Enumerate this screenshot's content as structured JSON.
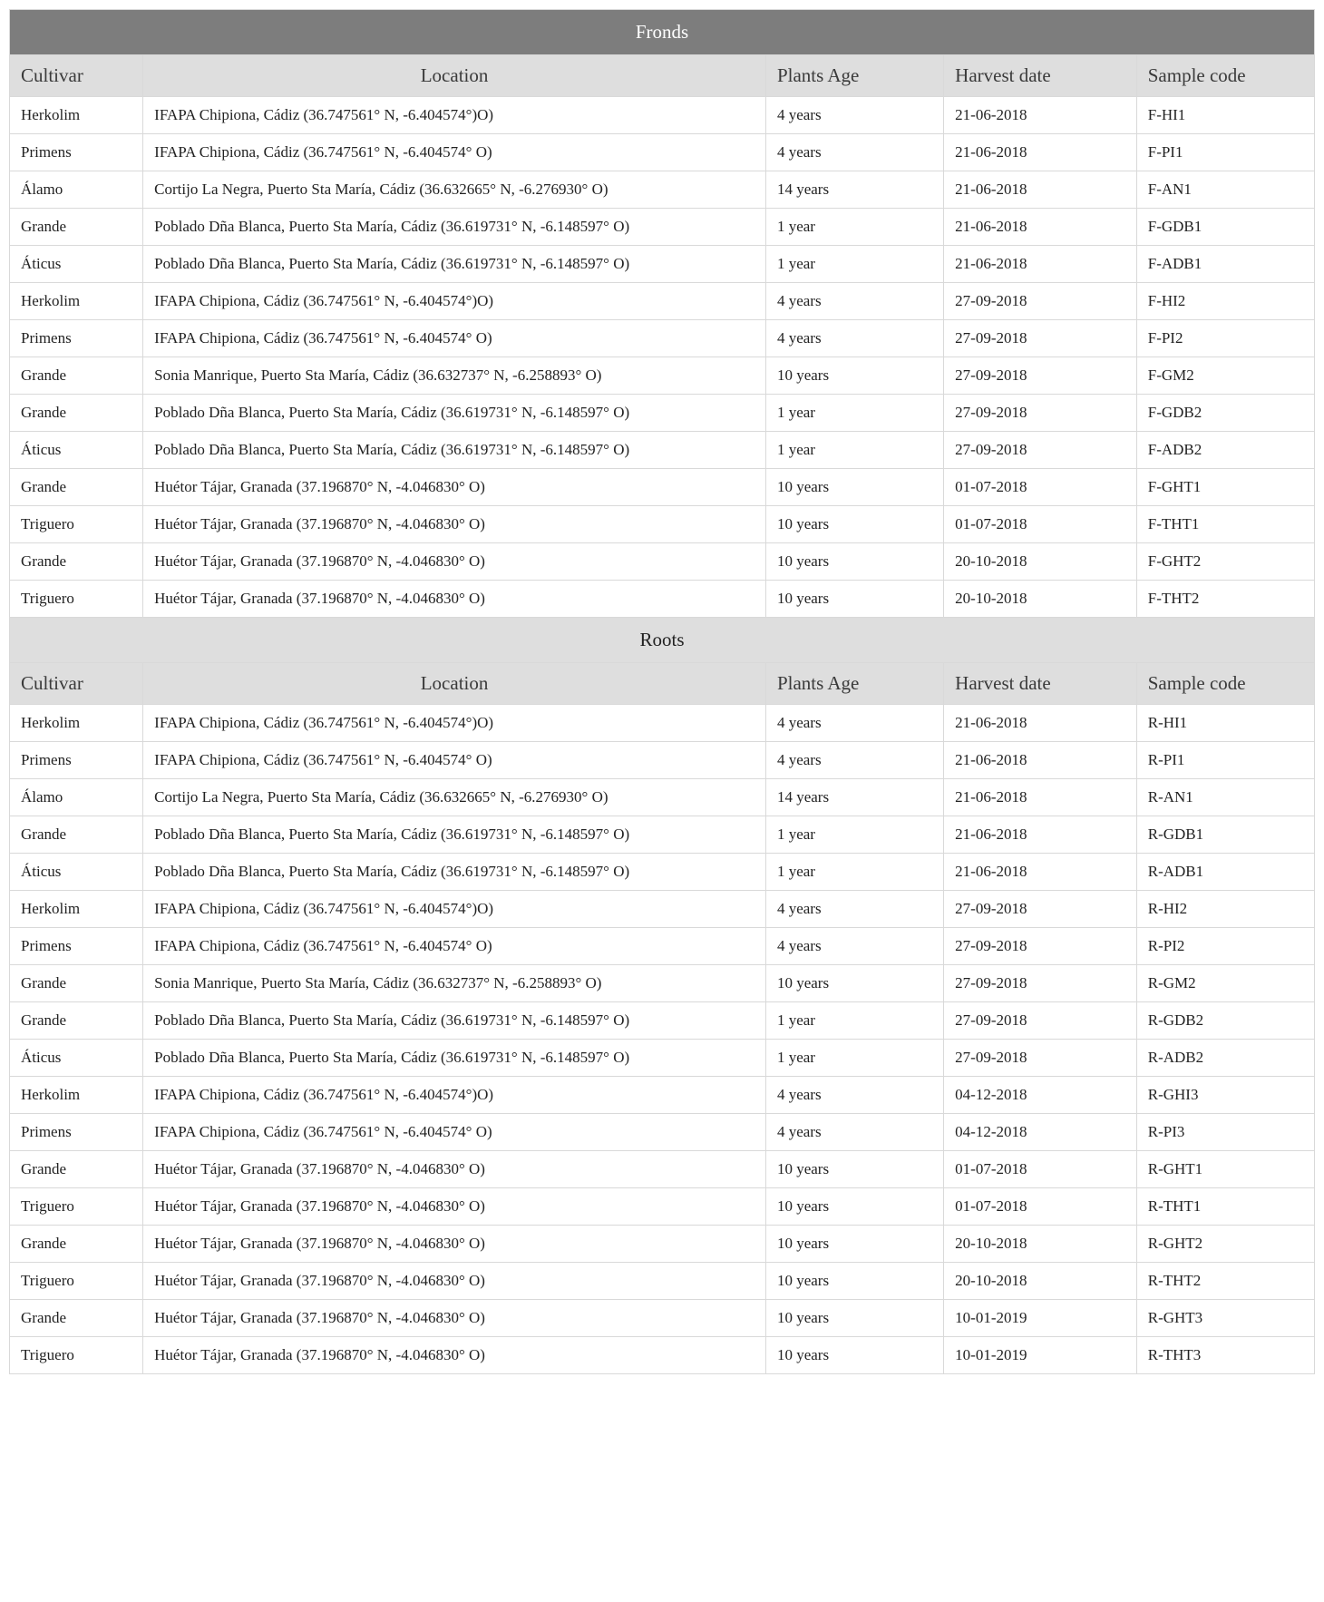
{
  "columns": [
    "Cultivar",
    "Location",
    "Plants Age",
    "Harvest date",
    "Sample code"
  ],
  "column_widths_pct": [
    9,
    42,
    12,
    13,
    12
  ],
  "colors": {
    "section_header_dark_bg": "#7d7d7d",
    "section_header_dark_fg": "#ffffff",
    "section_header_light_bg": "#dedede",
    "section_header_light_fg": "#222222",
    "col_header_bg": "#dedede",
    "border": "#d9d9d9",
    "text": "#222222",
    "page_bg": "#ffffff"
  },
  "typography": {
    "body_font": "Times New Roman",
    "header_fontsize_pt": 16,
    "cell_fontsize_pt": 13
  },
  "sections": [
    {
      "title": "Fronds",
      "header_style": "dark",
      "rows": [
        [
          "Herkolim",
          "IFAPA Chipiona, Cádiz (36.747561° N, -6.404574°)O)",
          "4 years",
          "21-06-2018",
          "F-HI1"
        ],
        [
          "Primens",
          "IFAPA Chipiona, Cádiz (36.747561° N, -6.404574° O)",
          "4 years",
          "21-06-2018",
          "F-PI1"
        ],
        [
          "Álamo",
          "Cortijo La Negra, Puerto Sta María, Cádiz (36.632665° N, -6.276930° O)",
          "14 years",
          "21-06-2018",
          "F-AN1"
        ],
        [
          "Grande",
          "Poblado Dña Blanca, Puerto Sta María, Cádiz (36.619731° N, -6.148597° O)",
          "1 year",
          "21-06-2018",
          "F-GDB1"
        ],
        [
          "Áticus",
          "Poblado Dña Blanca, Puerto Sta María, Cádiz (36.619731° N, -6.148597° O)",
          "1 year",
          "21-06-2018",
          "F-ADB1"
        ],
        [
          "Herkolim",
          "IFAPA Chipiona, Cádiz (36.747561° N, -6.404574°)O)",
          "4 years",
          "27-09-2018",
          "F-HI2"
        ],
        [
          "Primens",
          "IFAPA Chipiona, Cádiz (36.747561° N, -6.404574° O)",
          "4 years",
          "27-09-2018",
          "F-PI2"
        ],
        [
          "Grande",
          "Sonia Manrique, Puerto Sta María, Cádiz (36.632737° N, -6.258893° O)",
          "10 years",
          "27-09-2018",
          "F-GM2"
        ],
        [
          "Grande",
          "Poblado Dña Blanca, Puerto Sta María, Cádiz (36.619731° N, -6.148597° O)",
          "1 year",
          "27-09-2018",
          "F-GDB2"
        ],
        [
          "Áticus",
          "Poblado Dña Blanca, Puerto Sta María, Cádiz (36.619731° N, -6.148597° O)",
          "1 year",
          "27-09-2018",
          "F-ADB2"
        ],
        [
          "Grande",
          "Huétor Tájar, Granada (37.196870° N, -4.046830° O)",
          "10 years",
          "01-07-2018",
          "F-GHT1"
        ],
        [
          "Triguero",
          "Huétor Tájar, Granada (37.196870° N, -4.046830° O)",
          "10 years",
          "01-07-2018",
          "F-THT1"
        ],
        [
          "Grande",
          "Huétor Tájar, Granada (37.196870° N, -4.046830° O)",
          "10 years",
          "20-10-2018",
          "F-GHT2"
        ],
        [
          "Triguero",
          "Huétor Tájar, Granada (37.196870° N, -4.046830° O)",
          "10 years",
          "20-10-2018",
          "F-THT2"
        ]
      ]
    },
    {
      "title": "Roots",
      "header_style": "light",
      "rows": [
        [
          "Herkolim",
          "IFAPA Chipiona, Cádiz (36.747561° N, -6.404574°)O)",
          "4 years",
          "21-06-2018",
          "R-HI1"
        ],
        [
          "Primens",
          "IFAPA Chipiona, Cádiz (36.747561° N, -6.404574° O)",
          "4 years",
          "21-06-2018",
          "R-PI1"
        ],
        [
          "Álamo",
          "Cortijo La Negra, Puerto Sta María, Cádiz (36.632665° N, -6.276930° O)",
          "14 years",
          "21-06-2018",
          "R-AN1"
        ],
        [
          "Grande",
          "Poblado Dña Blanca, Puerto Sta María, Cádiz (36.619731° N, -6.148597° O)",
          "1 year",
          "21-06-2018",
          "R-GDB1"
        ],
        [
          "Áticus",
          "Poblado Dña Blanca, Puerto Sta María, Cádiz (36.619731° N, -6.148597° O)",
          "1 year",
          "21-06-2018",
          "R-ADB1"
        ],
        [
          "Herkolim",
          "IFAPA Chipiona, Cádiz (36.747561° N, -6.404574°)O)",
          "4 years",
          "27-09-2018",
          "R-HI2"
        ],
        [
          "Primens",
          "IFAPA Chipiona, Cádiz (36.747561° N, -6.404574° O)",
          "4 years",
          "27-09-2018",
          "R-PI2"
        ],
        [
          "Grande",
          "Sonia Manrique, Puerto Sta María, Cádiz (36.632737° N, -6.258893° O)",
          "10 years",
          "27-09-2018",
          "R-GM2"
        ],
        [
          "Grande",
          "Poblado Dña Blanca, Puerto Sta María, Cádiz (36.619731° N, -6.148597° O)",
          "1 year",
          "27-09-2018",
          "R-GDB2"
        ],
        [
          "Áticus",
          "Poblado Dña Blanca, Puerto Sta María, Cádiz (36.619731° N, -6.148597° O)",
          "1 year",
          "27-09-2018",
          "R-ADB2"
        ],
        [
          "Herkolim",
          "IFAPA Chipiona, Cádiz (36.747561° N, -6.404574°)O)",
          "4 years",
          "04-12-2018",
          "R-GHI3"
        ],
        [
          "Primens",
          "IFAPA Chipiona, Cádiz (36.747561° N, -6.404574° O)",
          "4 years",
          "04-12-2018",
          "R-PI3"
        ],
        [
          "Grande",
          "Huétor Tájar, Granada (37.196870° N, -4.046830° O)",
          "10 years",
          "01-07-2018",
          "R-GHT1"
        ],
        [
          "Triguero",
          "Huétor Tájar, Granada (37.196870° N, -4.046830° O)",
          "10 years",
          "01-07-2018",
          "R-THT1"
        ],
        [
          "Grande",
          "Huétor Tájar, Granada (37.196870° N, -4.046830° O)",
          "10 years",
          "20-10-2018",
          "R-GHT2"
        ],
        [
          "Triguero",
          "Huétor Tájar, Granada (37.196870° N, -4.046830° O)",
          "10 years",
          "20-10-2018",
          "R-THT2"
        ],
        [
          "Grande",
          "Huétor Tájar, Granada (37.196870° N, -4.046830° O)",
          "10 years",
          "10-01-2019",
          "R-GHT3"
        ],
        [
          "Triguero",
          "Huétor Tájar, Granada (37.196870° N, -4.046830° O)",
          "10 years",
          "10-01-2019",
          "R-THT3"
        ]
      ]
    }
  ]
}
